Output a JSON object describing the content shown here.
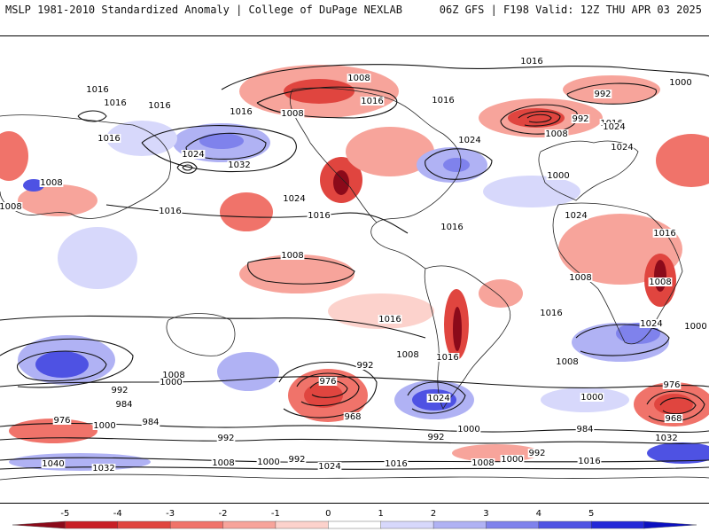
{
  "header": {
    "title": "MSLP 1981-2010 Standardized Anomaly | College of DuPage NEXLAB",
    "run_info": "06Z GFS | F198 Valid: 12Z THU APR 03 2025"
  },
  "map": {
    "projection": "cylindrical-global",
    "isobar_labels": [
      {
        "text": "1016"
      },
      {
        "text": "1016"
      },
      {
        "text": "1016"
      },
      {
        "text": "1016"
      },
      {
        "text": "1008"
      },
      {
        "text": "1008"
      },
      {
        "text": "992"
      },
      {
        "text": "1000"
      },
      {
        "text": "1016"
      },
      {
        "text": "1016"
      },
      {
        "text": "1024"
      },
      {
        "text": "1032"
      },
      {
        "text": "1024"
      },
      {
        "text": "1016"
      },
      {
        "text": "1016"
      },
      {
        "text": "1008"
      },
      {
        "text": "1024"
      },
      {
        "text": "1008"
      },
      {
        "text": "1016"
      },
      {
        "text": "1000"
      },
      {
        "text": "992"
      },
      {
        "text": "1008"
      },
      {
        "text": "1016"
      },
      {
        "text": "1024"
      },
      {
        "text": "1024"
      },
      {
        "text": "1016"
      },
      {
        "text": "1008"
      },
      {
        "text": "1008"
      },
      {
        "text": "1008"
      },
      {
        "text": "1016"
      },
      {
        "text": "1016"
      },
      {
        "text": "1024"
      },
      {
        "text": "1032"
      },
      {
        "text": "1016"
      },
      {
        "text": "1024"
      },
      {
        "text": "1008"
      },
      {
        "text": "1000"
      },
      {
        "text": "992"
      },
      {
        "text": "984"
      },
      {
        "text": "976"
      },
      {
        "text": "1000"
      },
      {
        "text": "984"
      },
      {
        "text": "976"
      },
      {
        "text": "968"
      },
      {
        "text": "992"
      },
      {
        "text": "1024"
      },
      {
        "text": "1016"
      },
      {
        "text": "1016"
      },
      {
        "text": "1008"
      },
      {
        "text": "1000"
      },
      {
        "text": "992"
      },
      {
        "text": "1000"
      },
      {
        "text": "984"
      },
      {
        "text": "976"
      },
      {
        "text": "968"
      },
      {
        "text": "1032"
      },
      {
        "text": "992"
      },
      {
        "text": "1040"
      },
      {
        "text": "1032"
      },
      {
        "text": "1008"
      },
      {
        "text": "1000"
      },
      {
        "text": "992"
      },
      {
        "text": "1024"
      },
      {
        "text": "1016"
      },
      {
        "text": "1008"
      },
      {
        "text": "1000"
      },
      {
        "text": "992"
      },
      {
        "text": "1016"
      },
      {
        "text": "1008"
      },
      {
        "text": "1000"
      }
    ]
  },
  "colorbar": {
    "ticks": [
      "-5",
      "-4",
      "-3",
      "-2",
      "-1",
      "0",
      "1",
      "2",
      "3",
      "4",
      "5"
    ],
    "colors": [
      "#8b0a1a",
      "#c81e25",
      "#e0453f",
      "#f0736a",
      "#f7a49b",
      "#fcd2cc",
      "#ffffff",
      "#d7d8fb",
      "#b0b2f4",
      "#7f82ec",
      "#4e52e3",
      "#2328d8",
      "#0b10c0"
    ],
    "units": "standardized anomaly"
  }
}
